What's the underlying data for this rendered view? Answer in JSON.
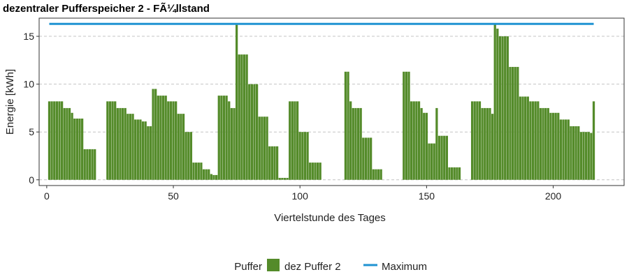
{
  "chart_data": {
    "type": "bar",
    "title": "dezentraler Pufferspeicher 2 - FÃ¼llstand",
    "xlabel": "Viertelstunde des Tages",
    "ylabel": "Energie [kWh]",
    "xlim": [
      -3,
      228
    ],
    "ylim": [
      -0.6,
      16.9
    ],
    "xticks": [
      0,
      50,
      100,
      150,
      200
    ],
    "yticks": [
      0,
      5,
      10,
      15
    ],
    "grid": "horizontal-dashed",
    "legend": {
      "placement": "bottom",
      "title": "Puffer",
      "entries": [
        {
          "label": "dez Puffer 2",
          "kind": "bar",
          "color": "#548b2a"
        },
        {
          "label": "Maximum",
          "kind": "line",
          "color": "#1f93d2"
        }
      ]
    },
    "series": [
      {
        "name": "dez Puffer 2",
        "kind": "bar",
        "color": "#548b2a",
        "x": [
          1,
          2,
          3,
          4,
          5,
          6,
          7,
          8,
          9,
          10,
          11,
          12,
          13,
          14,
          15,
          16,
          17,
          18,
          19,
          20,
          24,
          25,
          26,
          27,
          28,
          29,
          30,
          31,
          32,
          33,
          34,
          35,
          36,
          37,
          38,
          39,
          40,
          41,
          42,
          43,
          44,
          45,
          46,
          47,
          48,
          49,
          50,
          51,
          52,
          53,
          54,
          55,
          56,
          57,
          58,
          59,
          60,
          61,
          62,
          63,
          64,
          65,
          66,
          67,
          68,
          69,
          70,
          71,
          72,
          73,
          74,
          75,
          76,
          77,
          78,
          79,
          80,
          81,
          82,
          83,
          84,
          85,
          86,
          87,
          88,
          89,
          90,
          91,
          92,
          93,
          94,
          95,
          96,
          97,
          98,
          99,
          100,
          101,
          102,
          103,
          104,
          105,
          106,
          107,
          108,
          118,
          119,
          120,
          121,
          122,
          123,
          124,
          125,
          126,
          127,
          128,
          129,
          130,
          131,
          132,
          141,
          142,
          143,
          144,
          145,
          146,
          147,
          148,
          149,
          150,
          151,
          152,
          153,
          154,
          155,
          156,
          157,
          158,
          159,
          160,
          161,
          162,
          163,
          168,
          169,
          170,
          171,
          172,
          173,
          174,
          175,
          176,
          177,
          178,
          179,
          180,
          181,
          182,
          183,
          184,
          185,
          186,
          187,
          188,
          189,
          190,
          191,
          192,
          193,
          194,
          195,
          196,
          197,
          198,
          199,
          200,
          201,
          202,
          203,
          204,
          205,
          206,
          207,
          208,
          209,
          210,
          211,
          212,
          213,
          214,
          215,
          216
        ],
        "values": [
          8.2,
          8.2,
          8.2,
          8.2,
          8.2,
          8.2,
          7.5,
          7.5,
          7.5,
          7.0,
          6.4,
          6.4,
          6.4,
          6.4,
          3.2,
          3.2,
          3.2,
          3.2,
          3.2,
          0,
          8.2,
          8.2,
          8.2,
          8.2,
          7.5,
          7.5,
          7.5,
          7.5,
          6.9,
          6.9,
          6.9,
          6.3,
          6.3,
          6.3,
          6.1,
          6.1,
          5.6,
          5.6,
          9.5,
          9.5,
          8.8,
          8.8,
          8.8,
          8.8,
          8.2,
          8.2,
          8.2,
          8.2,
          6.9,
          6.9,
          6.9,
          5.0,
          5.0,
          5.0,
          1.8,
          1.8,
          1.8,
          1.8,
          1.1,
          1.1,
          1.1,
          0.6,
          0.5,
          0.5,
          8.8,
          8.8,
          8.8,
          8.8,
          8.2,
          7.5,
          7.5,
          16.2,
          13.1,
          13.1,
          13.1,
          13.1,
          10.0,
          10.0,
          10.0,
          10.0,
          6.6,
          6.6,
          6.6,
          6.6,
          3.5,
          3.5,
          3.5,
          3.5,
          0.2,
          0.2,
          0.2,
          0.2,
          8.2,
          8.2,
          8.2,
          8.2,
          5.0,
          5.0,
          5.0,
          5.0,
          1.8,
          1.8,
          1.8,
          1.8,
          1.8,
          11.3,
          11.3,
          8.2,
          7.5,
          7.5,
          7.5,
          7.5,
          4.4,
          4.4,
          4.4,
          4.4,
          1.1,
          1.1,
          1.1,
          1.1,
          11.3,
          11.3,
          11.3,
          8.2,
          8.2,
          8.2,
          8.2,
          7.5,
          7.0,
          7.0,
          3.8,
          3.8,
          3.8,
          7.5,
          4.6,
          4.6,
          4.6,
          4.6,
          1.3,
          1.3,
          1.3,
          1.3,
          1.3,
          8.2,
          8.2,
          8.2,
          8.2,
          7.5,
          7.5,
          7.5,
          7.5,
          6.9,
          16.3,
          15.8,
          15.0,
          15.0,
          15.0,
          15.0,
          11.8,
          11.8,
          11.8,
          11.8,
          8.7,
          8.7,
          8.7,
          8.7,
          8.2,
          8.2,
          8.2,
          8.2,
          7.5,
          7.5,
          7.5,
          7.5,
          7.0,
          7.0,
          7.0,
          7.0,
          6.3,
          6.3,
          6.3,
          6.3,
          5.6,
          5.6,
          5.6,
          5.6,
          5.0,
          5.0,
          5.0,
          5.0,
          4.9,
          8.2
        ]
      },
      {
        "name": "Maximum",
        "kind": "line",
        "color": "#1f93d2",
        "x": [
          1,
          216
        ],
        "values": [
          16.3,
          16.3
        ]
      }
    ]
  }
}
